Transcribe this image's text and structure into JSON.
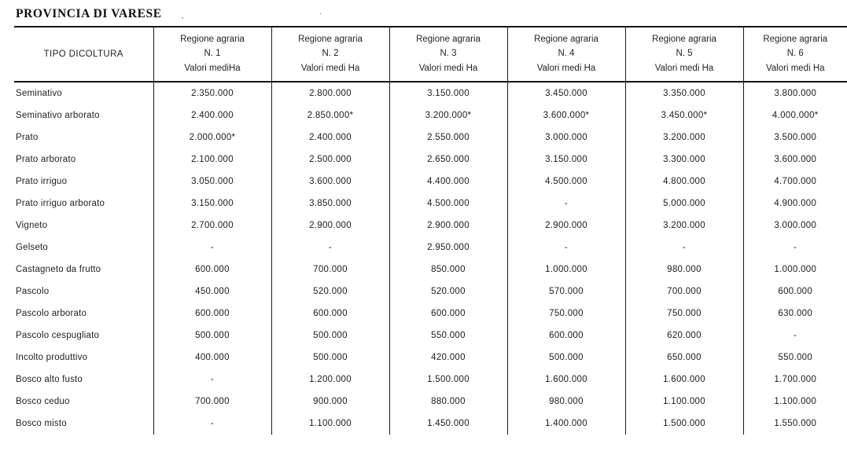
{
  "page": {
    "title": "PROVINCIA DI VARESE",
    "artifacts": {
      "mark1": "‛",
      "mark2": "·"
    }
  },
  "table": {
    "corner_header": "TIPO DICOLTURA",
    "columns": [
      {
        "line1": "Regione agraria",
        "line2": "N. 1",
        "line3": "Valori mediHa"
      },
      {
        "line1": "Regione agraria",
        "line2": "N. 2",
        "line3": "Valori medi Ha"
      },
      {
        "line1": "Regione agraria",
        "line2": "N. 3",
        "line3": "Valori medi Ha"
      },
      {
        "line1": "Regione agraria",
        "line2": "N. 4",
        "line3": "Valori medi Ha"
      },
      {
        "line1": "Regione agraria",
        "line2": "N. 5",
        "line3": "Valori medi Ha"
      },
      {
        "line1": "Regione agraria",
        "line2": "N. 6",
        "line3": "Valori medi Ha"
      }
    ],
    "rows": [
      {
        "label": "Seminativo",
        "values": [
          "2.350.000",
          "2.800.000",
          "3.150.000",
          "3.450.000",
          "3.350.000",
          "3.800.000"
        ]
      },
      {
        "label": "Seminativo arborato",
        "values": [
          "2.400.000",
          "2.850.000*",
          "3.200.000*",
          "3.600.000*",
          "3.450.000*",
          "4.000.000*"
        ]
      },
      {
        "label": "Prato",
        "values": [
          "2.000.000*",
          "2.400.000",
          "2.550.000",
          "3.000.000",
          "3.200.000",
          "3.500.000"
        ]
      },
      {
        "label": "Prato arborato",
        "values": [
          "2.100.000",
          "2.500.000",
          "2.650.000",
          "3.150.000",
          "3.300.000",
          "3.600.000"
        ]
      },
      {
        "label": "Prato irriguo",
        "values": [
          "3.050.000",
          "3.600.000",
          "4.400.000",
          "4.500.000",
          "4.800.000",
          "4.700.000"
        ]
      },
      {
        "label": "Prato irriguo arborato",
        "values": [
          "3.150.000",
          "3.850.000",
          "4.500.000",
          "-",
          "5.000.000",
          "4.900.000"
        ]
      },
      {
        "label": "Vigneto",
        "values": [
          "2.700.000",
          "2.900.000",
          "2.900.000",
          "2.900.000",
          "3.200.000",
          "3.000.000"
        ]
      },
      {
        "label": "Gelseto",
        "values": [
          "-",
          "-",
          "2.950.000",
          "-",
          "-",
          "-"
        ]
      },
      {
        "label": "Castagneto da frutto",
        "values": [
          "600.000",
          "700.000",
          "850.000",
          "1.000.000",
          "980.000",
          "1.000.000"
        ]
      },
      {
        "label": "Pascolo",
        "values": [
          "450.000",
          "520.000",
          "520.000",
          "570.000",
          "700.000",
          "600.000"
        ]
      },
      {
        "label": "Pascolo arborato",
        "values": [
          "600.000",
          "600.000",
          "600.000",
          "750.000",
          "750.000",
          "630.000"
        ]
      },
      {
        "label": "Pascolo cespugliato",
        "values": [
          "500.000",
          "500.000",
          "550.000",
          "600.000",
          "620.000",
          "-"
        ]
      },
      {
        "label": "Incolto produttivo",
        "values": [
          "400.000",
          "500.000",
          "420.000",
          "500.000",
          "650.000",
          "550.000"
        ]
      },
      {
        "label": "Bosco alto fusto",
        "values": [
          "-",
          "1.200.000",
          "1.500.000",
          "1.600.000",
          "1.600.000",
          "1.700.000"
        ]
      },
      {
        "label": "Bosco ceduo",
        "values": [
          "700.000",
          "900.000",
          "880.000",
          "980.000",
          "1.100.000",
          "1.100.000"
        ]
      },
      {
        "label": "Bosco misto",
        "values": [
          "-",
          "1.100.000",
          "1.450.000",
          "1.400.000",
          "1.500.000",
          "1.550.000"
        ]
      }
    ]
  }
}
